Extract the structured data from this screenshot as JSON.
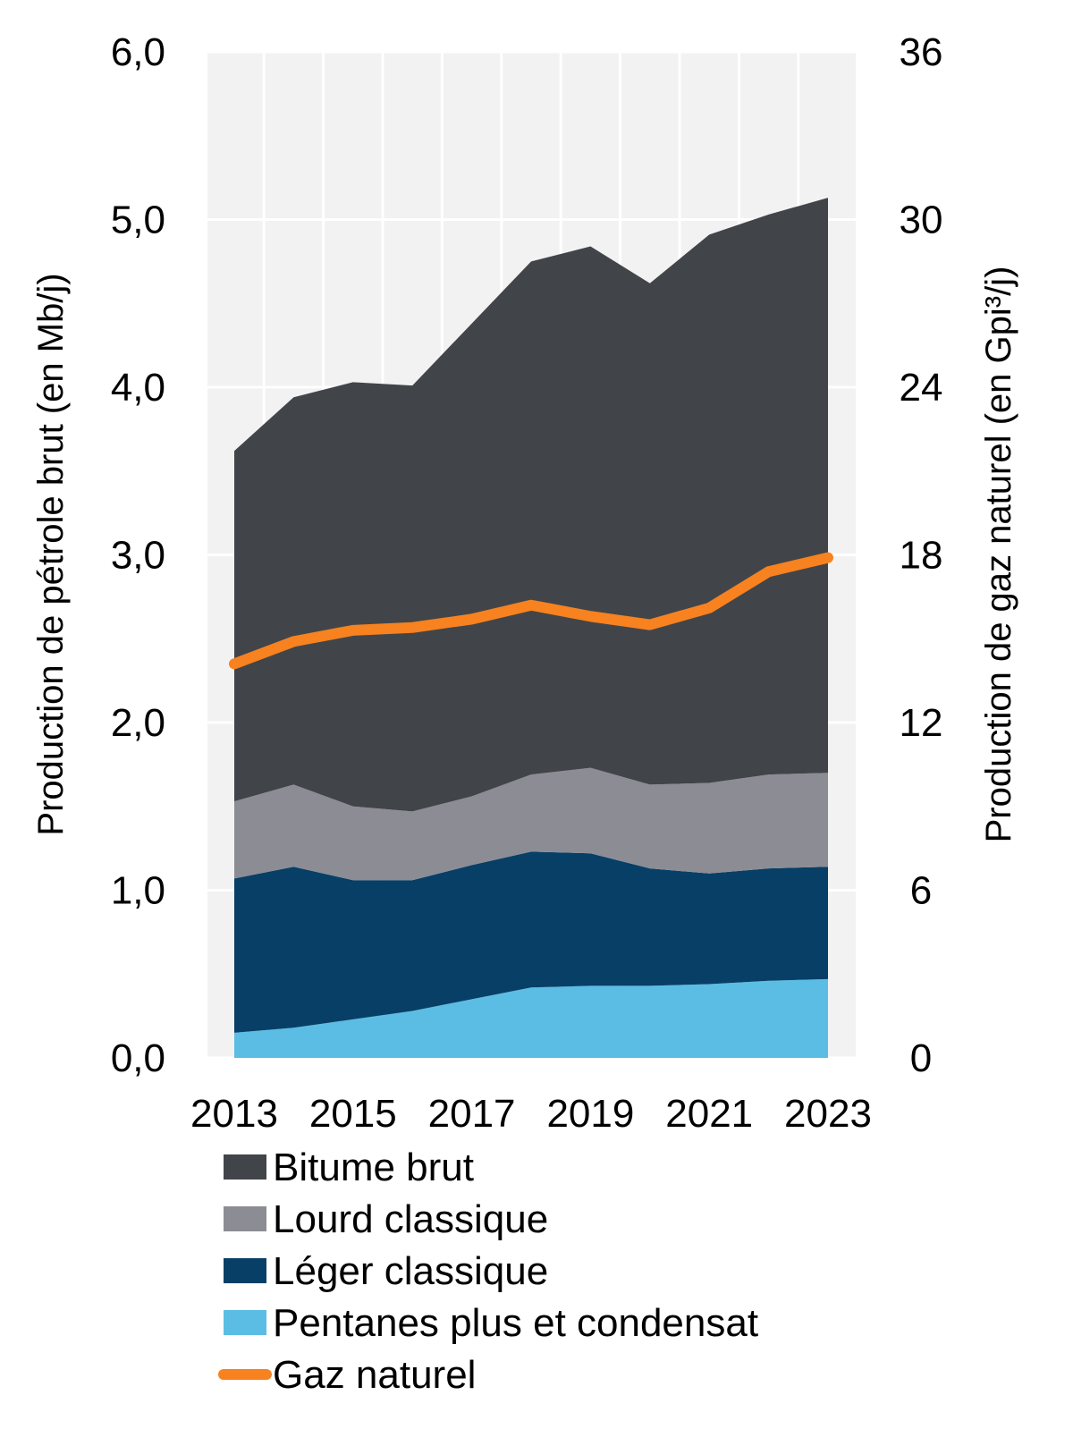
{
  "chart_data": {
    "type": "area",
    "stacked": true,
    "title": "",
    "x": [
      2013,
      2014,
      2015,
      2016,
      2017,
      2018,
      2019,
      2020,
      2021,
      2022,
      2023
    ],
    "x_tick_labels": [
      "2013",
      "2015",
      "2017",
      "2019",
      "2021",
      "2023"
    ],
    "ylabel": "Production de pétrole brut (en Mb/j)",
    "ylim": [
      0,
      6
    ],
    "y_tick_labels": [
      "0,0",
      "1,0",
      "2,0",
      "3,0",
      "4,0",
      "5,0",
      "6,0"
    ],
    "y2label": "Production de gaz naturel  (en Gpi³/j)",
    "y2lim": [
      0,
      36
    ],
    "y2_tick_labels": [
      "0",
      "6",
      "12",
      "18",
      "24",
      "30",
      "36"
    ],
    "grid": true,
    "legend_placement": "bottom",
    "series": [
      {
        "name": "Pentanes plus et condensat",
        "type": "area",
        "axis": "left",
        "color": "#5bbde4",
        "values": [
          0.15,
          0.18,
          0.23,
          0.28,
          0.35,
          0.42,
          0.43,
          0.43,
          0.44,
          0.46,
          0.47
        ]
      },
      {
        "name": "Léger classique",
        "type": "area",
        "axis": "left",
        "color": "#083f66",
        "values": [
          0.92,
          0.96,
          0.83,
          0.78,
          0.8,
          0.81,
          0.79,
          0.7,
          0.66,
          0.67,
          0.67
        ]
      },
      {
        "name": "Lourd classique",
        "type": "area",
        "axis": "left",
        "color": "#8c8c94",
        "values": [
          0.46,
          0.49,
          0.44,
          0.41,
          0.41,
          0.46,
          0.51,
          0.5,
          0.54,
          0.56,
          0.56
        ]
      },
      {
        "name": "Bitume brut",
        "type": "area",
        "axis": "left",
        "color": "#414549",
        "values": [
          2.09,
          2.31,
          2.53,
          2.54,
          2.82,
          3.06,
          3.11,
          2.99,
          3.27,
          3.34,
          3.43
        ]
      },
      {
        "name": "Gaz naturel",
        "type": "line",
        "axis": "right",
        "color": "#f7821f",
        "values": [
          14.1,
          14.9,
          15.3,
          15.4,
          15.7,
          16.2,
          15.8,
          15.5,
          16.1,
          17.4,
          17.9
        ]
      }
    ],
    "legend_order": [
      "Bitume brut",
      "Lourd classique",
      "Léger classique",
      "Pentanes plus et condensat",
      "Gaz naturel"
    ]
  }
}
